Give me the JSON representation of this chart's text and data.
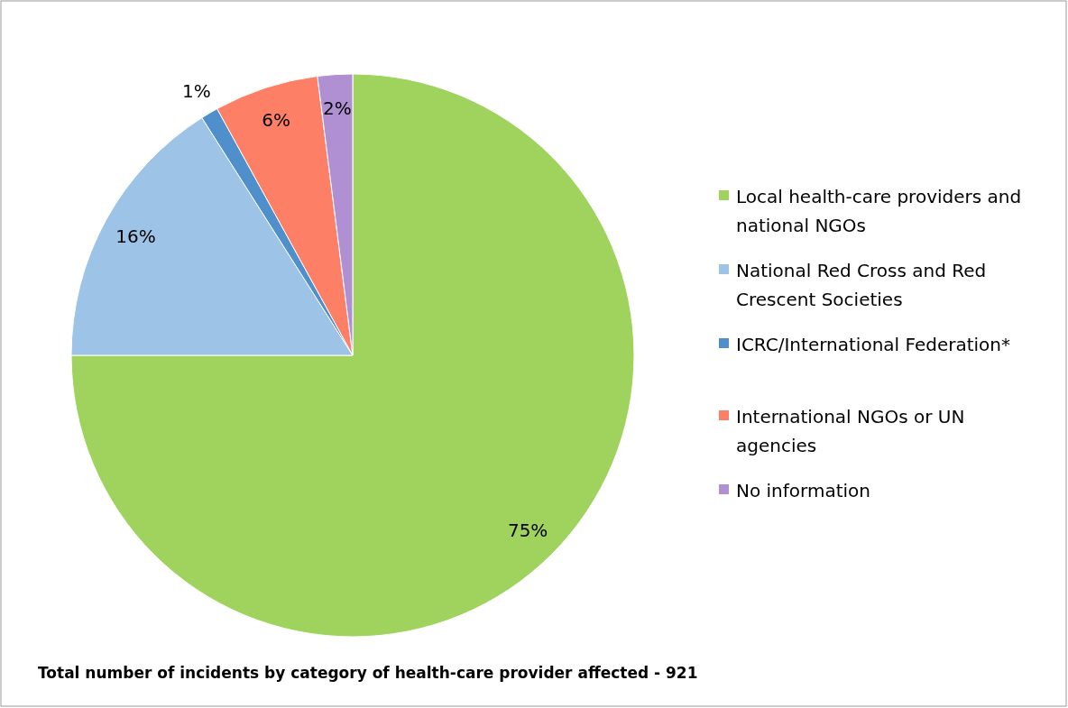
{
  "chart_data": {
    "type": "pie",
    "title": "Total number of incidents by category of health-care provider affected - 921",
    "categories": [
      "Local health-care providers and national NGOs",
      "National Red Cross and Red Crescent Societies",
      "ICRC/International Federation*",
      "International NGOs or UN agencies",
      "No information"
    ],
    "values": [
      75,
      16,
      1,
      6,
      2
    ],
    "colors": [
      "#9fd35e",
      "#9dc3e6",
      "#4f8fcc",
      "#fd8066",
      "#b08fd2"
    ],
    "value_labels": [
      "75%",
      "16%",
      "1%",
      "6%",
      "2%"
    ],
    "legend": "right"
  }
}
